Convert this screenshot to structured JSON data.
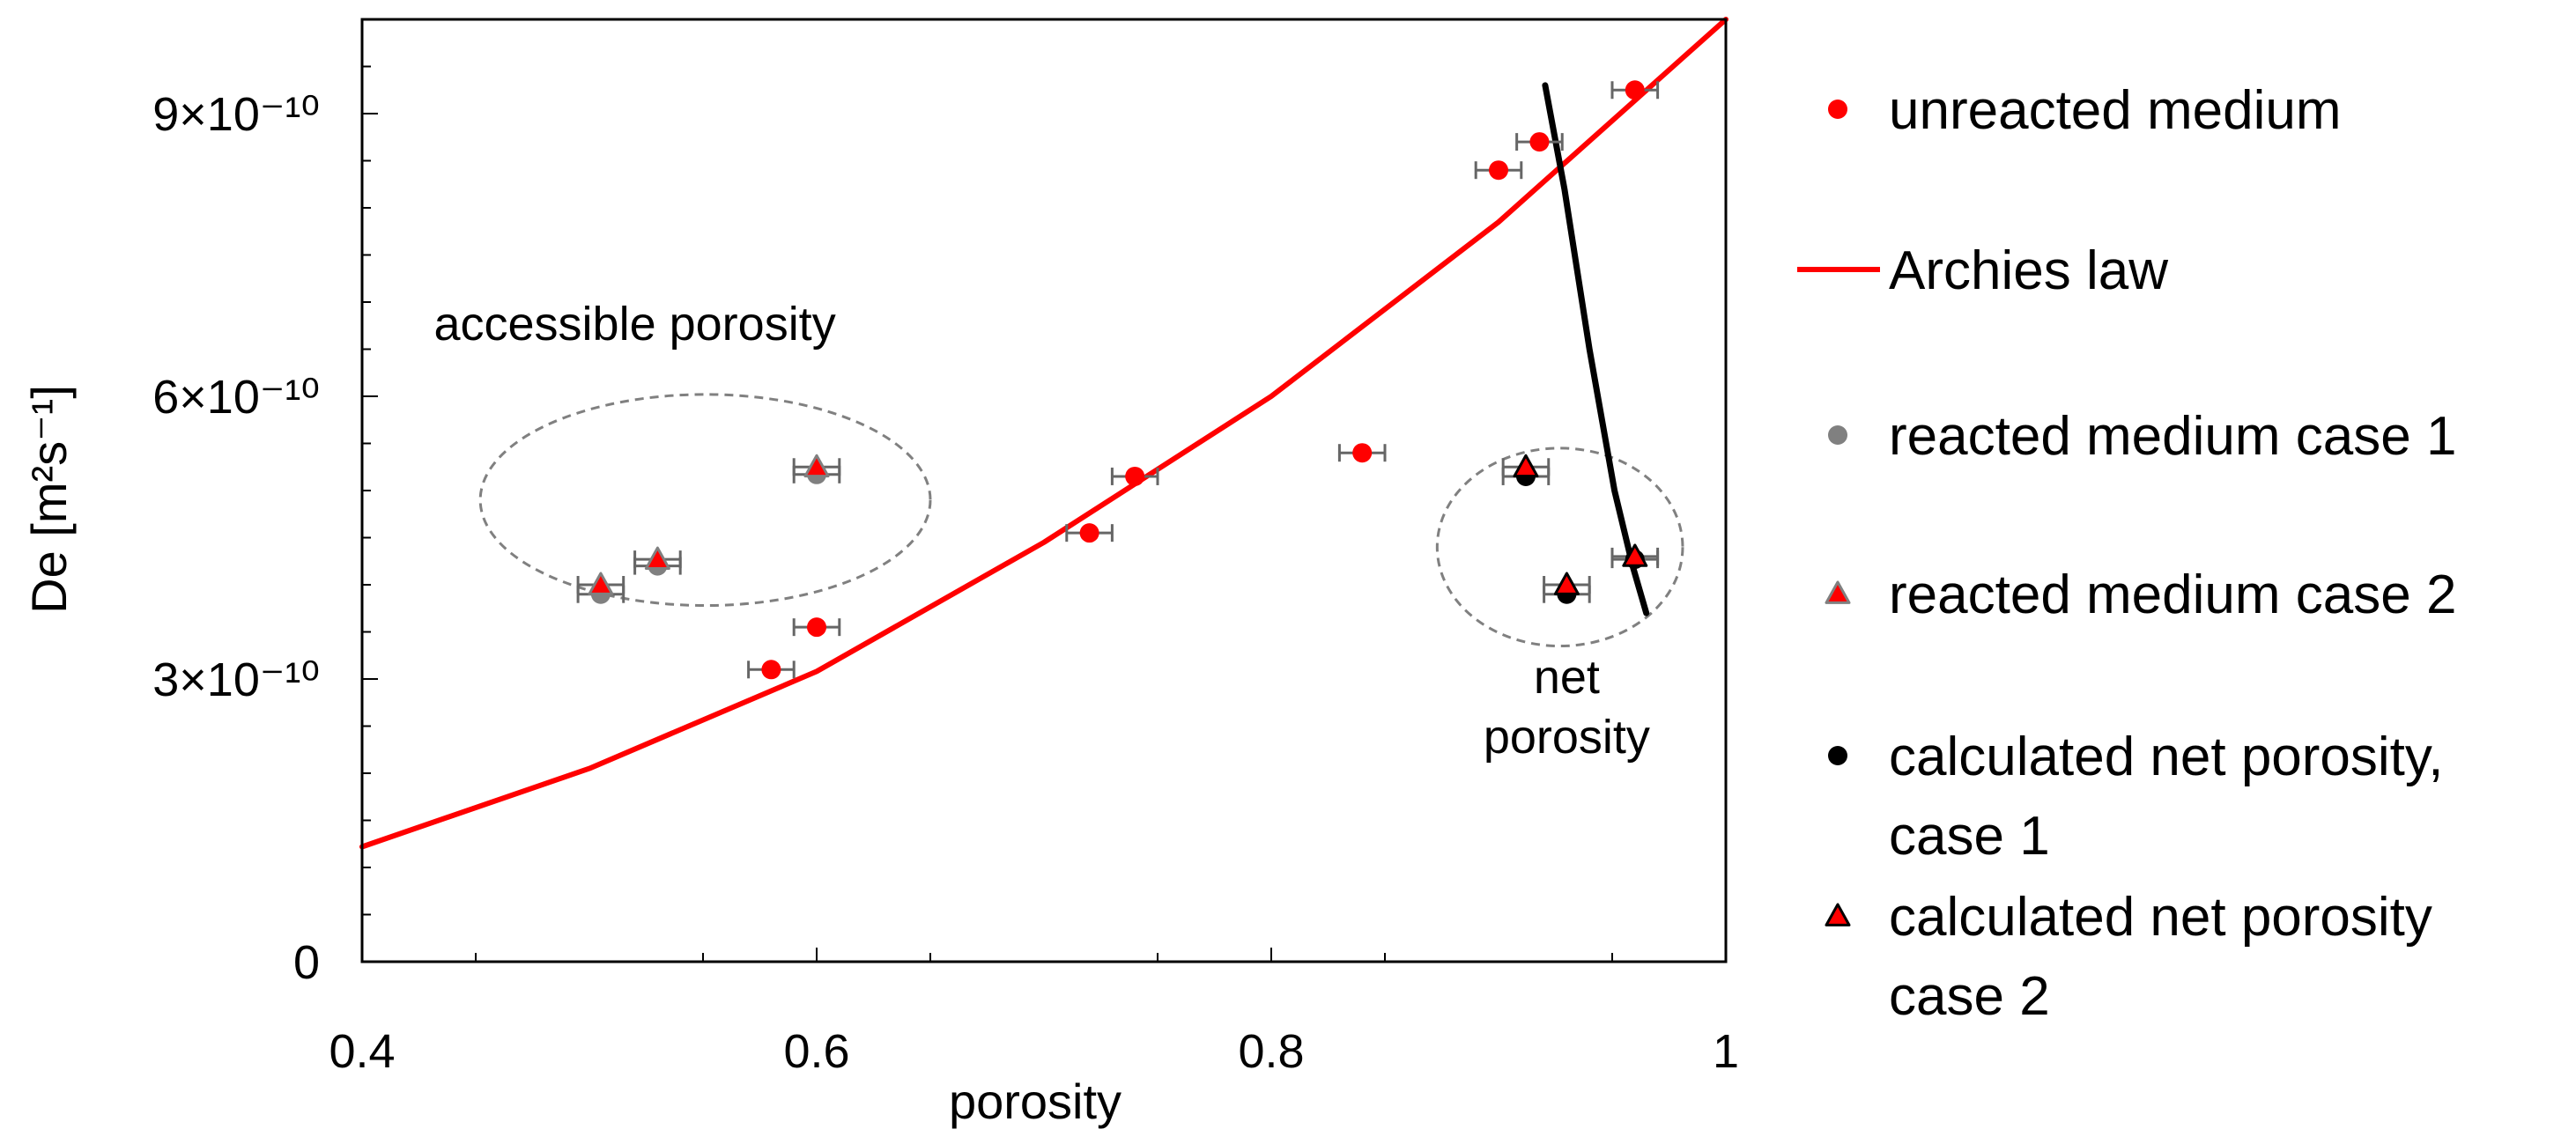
{
  "chart_data": {
    "type": "scatter",
    "title": "",
    "xlabel": "porosity",
    "ylabel": "De [m²s⁻¹]",
    "xlim": [
      0.4,
      1.0
    ],
    "ylim": [
      0,
      1e-09
    ],
    "x_ticks": [
      {
        "value": 0.4,
        "label": "0.4"
      },
      {
        "value": 0.6,
        "label": "0.6"
      },
      {
        "value": 0.8,
        "label": "0.8"
      },
      {
        "value": 1.0,
        "label": "1"
      }
    ],
    "y_ticks": [
      {
        "value": 0,
        "label": "0"
      },
      {
        "value": 3e-10,
        "label": "3×10⁻¹⁰"
      },
      {
        "value": 6e-10,
        "label": "6×10⁻¹⁰"
      },
      {
        "value": 9e-10,
        "label": "9×10⁻¹⁰"
      }
    ],
    "series": [
      {
        "name": "unreacted medium",
        "kind": "marker",
        "marker": "circle",
        "color": "#ff0000",
        "points": [
          {
            "x": 0.58,
            "y": 3.1e-10,
            "xerr": 0.01
          },
          {
            "x": 0.6,
            "y": 3.55e-10,
            "xerr": 0.01
          },
          {
            "x": 0.72,
            "y": 4.55e-10,
            "xerr": 0.01
          },
          {
            "x": 0.74,
            "y": 5.15e-10,
            "xerr": 0.01
          },
          {
            "x": 0.84,
            "y": 5.4e-10,
            "xerr": 0.01
          },
          {
            "x": 0.9,
            "y": 8.4e-10,
            "xerr": 0.01
          },
          {
            "x": 0.918,
            "y": 8.7e-10,
            "xerr": 0.01
          },
          {
            "x": 0.96,
            "y": 9.25e-10,
            "xerr": 0.01
          }
        ]
      },
      {
        "name": "Archies law",
        "kind": "line",
        "color": "#ff0000",
        "points": [
          {
            "x": 0.4,
            "y": 1.22e-10
          },
          {
            "x": 0.5,
            "y": 2.05e-10
          },
          {
            "x": 0.6,
            "y": 3.08e-10
          },
          {
            "x": 0.7,
            "y": 4.45e-10
          },
          {
            "x": 0.8,
            "y": 6e-10
          },
          {
            "x": 0.9,
            "y": 7.85e-10
          },
          {
            "x": 1.0,
            "y": 1e-09
          }
        ]
      },
      {
        "name": "reacted medium case 1",
        "kind": "marker",
        "marker": "circle",
        "color": "#808080",
        "points": [
          {
            "x": 0.505,
            "y": 3.9e-10,
            "xerr": 0.01
          },
          {
            "x": 0.53,
            "y": 4.2e-10,
            "xerr": 0.01
          },
          {
            "x": 0.6,
            "y": 5.17e-10,
            "xerr": 0.01
          }
        ]
      },
      {
        "name": "reacted medium case 2",
        "kind": "marker",
        "marker": "triangle",
        "color": "#ff0000",
        "edge": "#808080",
        "points": [
          {
            "x": 0.505,
            "y": 4e-10,
            "xerr": 0.01
          },
          {
            "x": 0.53,
            "y": 4.27e-10,
            "xerr": 0.01
          },
          {
            "x": 0.6,
            "y": 5.25e-10,
            "xerr": 0.01
          }
        ]
      },
      {
        "name": "calculated net porosity,\ncase 1",
        "kind": "marker",
        "marker": "circle",
        "color": "#000000",
        "points": [
          {
            "x": 0.912,
            "y": 5.15e-10,
            "xerr": 0.01
          },
          {
            "x": 0.93,
            "y": 3.9e-10,
            "xerr": 0.01
          },
          {
            "x": 0.96,
            "y": 4.27e-10,
            "xerr": 0.01
          }
        ]
      },
      {
        "name": "calculated net porosity\ncase 2",
        "kind": "marker",
        "marker": "triangle",
        "color": "#ff0000",
        "edge": "#000000",
        "points": [
          {
            "x": 0.912,
            "y": 5.25e-10,
            "xerr": 0.01
          },
          {
            "x": 0.93,
            "y": 4e-10,
            "xerr": 0.01
          },
          {
            "x": 0.96,
            "y": 4.3e-10,
            "xerr": 0.01
          }
        ]
      },
      {
        "name": "net porosity curve",
        "kind": "curve",
        "color": "#000000",
        "show_in_legend": false,
        "points": [
          {
            "x": 0.9205,
            "y": 9.3e-10
          },
          {
            "x": 0.929,
            "y": 8.2e-10
          },
          {
            "x": 0.94,
            "y": 6.5e-10
          },
          {
            "x": 0.951,
            "y": 5e-10
          },
          {
            "x": 0.959,
            "y": 4.2e-10
          },
          {
            "x": 0.965,
            "y": 3.7e-10
          }
        ]
      }
    ],
    "annotations": [
      {
        "text": "accessible porosity",
        "x": 0.52,
        "y": 6.6e-10,
        "lines": [
          "accessible porosity"
        ]
      },
      {
        "text": "net\nporosity",
        "x": 0.93,
        "y": 2.85e-10,
        "lines": [
          "net",
          "porosity"
        ]
      }
    ],
    "ellipses": [
      {
        "cx": 0.551,
        "cy": 4.9e-10,
        "rx": 0.099,
        "ry": 1.12e-10
      },
      {
        "cx": 0.927,
        "cy": 4.4e-10,
        "rx": 0.054,
        "ry": 1.05e-10
      }
    ],
    "grid": false,
    "legend": "right"
  }
}
